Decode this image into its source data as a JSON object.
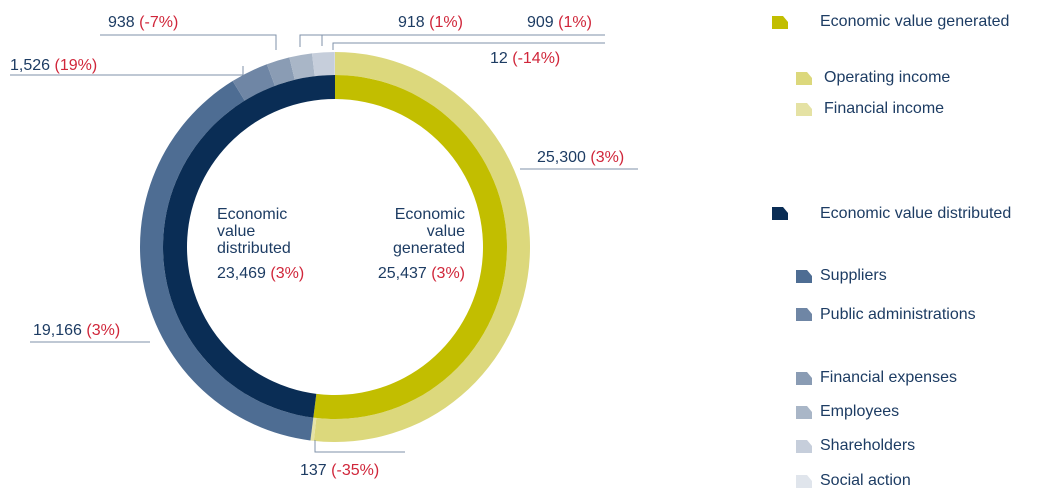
{
  "chart_data": {
    "type": "nested-donut",
    "inner": {
      "categories": [
        "Economic value generated",
        "Economic value distributed"
      ],
      "values": [
        25437,
        23469
      ],
      "value_labels": [
        "25,437",
        "23,469"
      ],
      "changes": [
        3,
        3
      ],
      "change_labels": [
        "(3%)",
        "(3%)"
      ],
      "colors": [
        "#c2be00",
        "#0a2d55"
      ]
    },
    "outer": {
      "categories": [
        "Operating income",
        "Financial income",
        "Suppliers",
        "Public administrations",
        "Financial expenses",
        "Employees",
        "Shareholders",
        "Social action"
      ],
      "values": [
        25300,
        137,
        19166,
        1526,
        938,
        918,
        909,
        12
      ],
      "value_labels": [
        "25,300",
        "137",
        "19,166",
        "1,526",
        "938",
        "918",
        "909",
        "12"
      ],
      "changes": [
        3,
        -35,
        3,
        19,
        -7,
        1,
        1,
        -14
      ],
      "change_labels": [
        "(3%)",
        "(-35%)",
        "(3%)",
        "(19%)",
        "(-7%)",
        "(1%)",
        "(1%)",
        "(-14%)"
      ],
      "colors": [
        "#dcd87c",
        "#e5e2a4",
        "#4e6d93",
        "#6f86a5",
        "#8a9cb4",
        "#a9b6c7",
        "#c6cedb",
        "#e0e5ec"
      ]
    }
  }
}
